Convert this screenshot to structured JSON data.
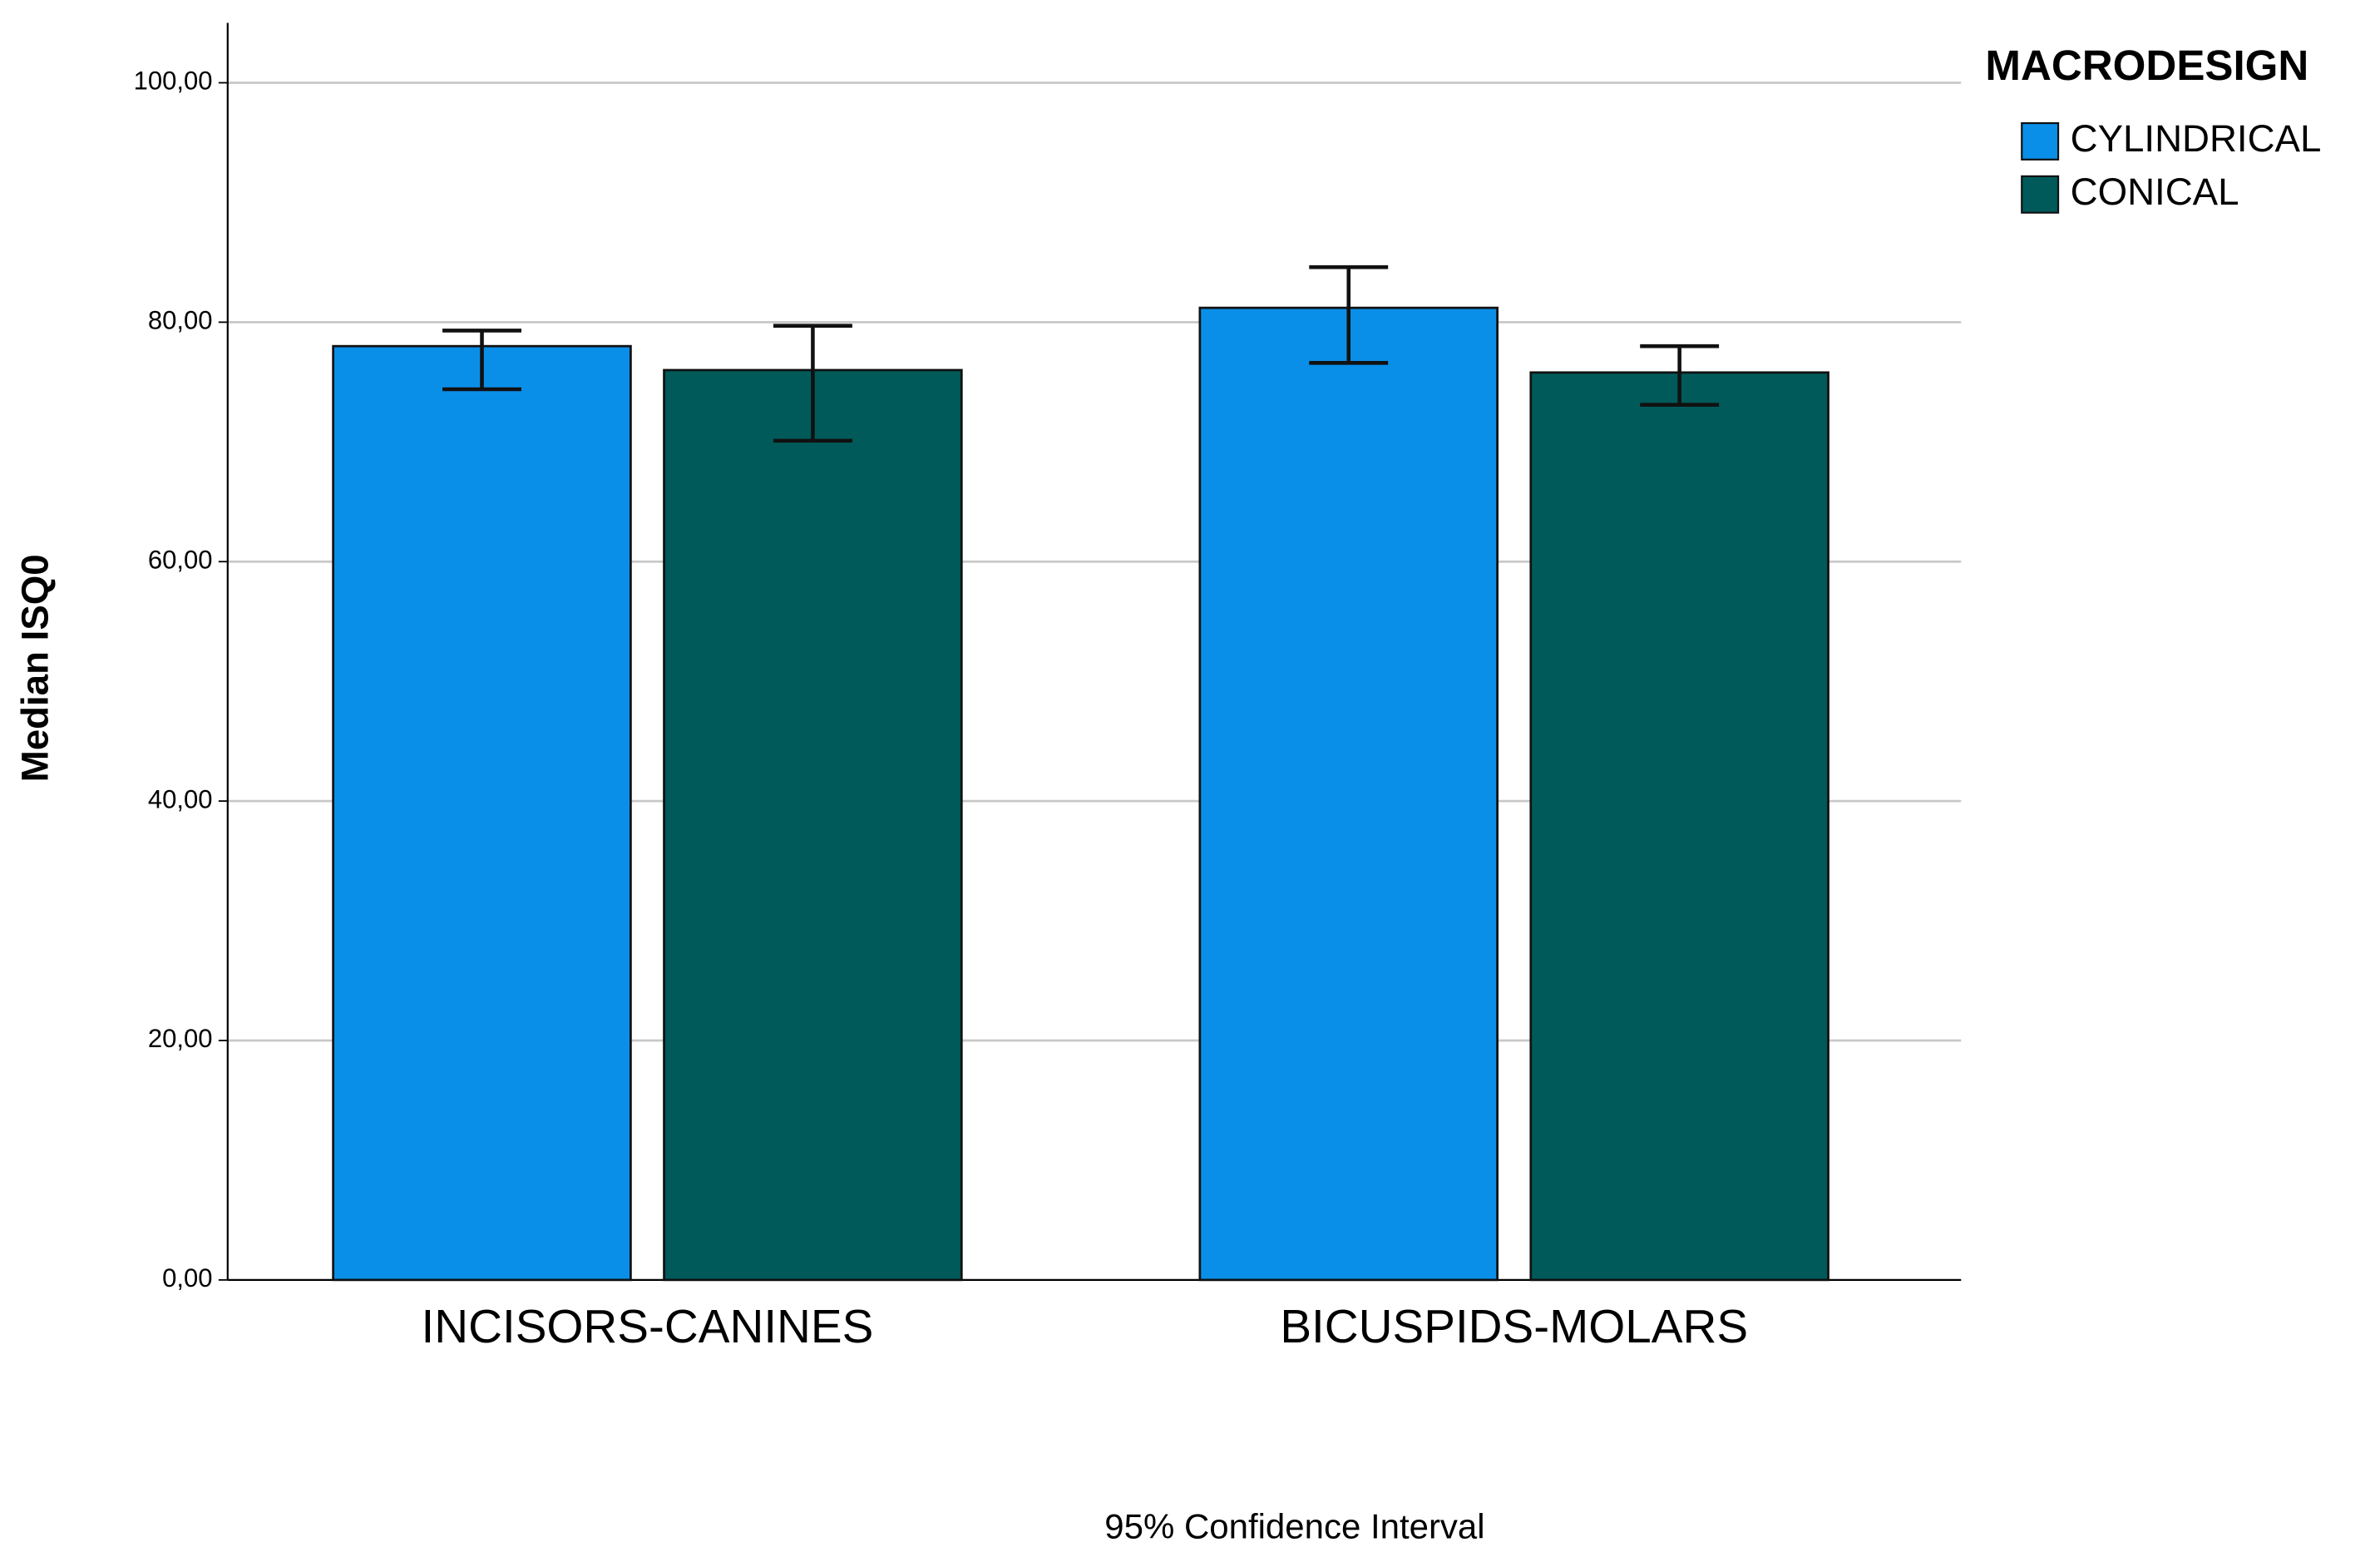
{
  "chart_data": {
    "type": "bar",
    "title_y": "Median ISQ0",
    "x_label": "95% Confidence Interval",
    "legend_title": "MACRODESIGN",
    "legend_position": "right",
    "categories": [
      "INCISORS-CANINES",
      "BICUSPIDS-MOLARS"
    ],
    "series": [
      {
        "name": "CYLINDRICAL",
        "color": "#0a8fe8",
        "values": [
          78.0,
          81.2
        ],
        "ci_low": [
          74.4,
          76.6
        ],
        "ci_high": [
          79.3,
          84.6
        ]
      },
      {
        "name": "CONICAL",
        "color": "#005a5a",
        "values": [
          76.0,
          75.8
        ],
        "ci_low": [
          70.1,
          73.1
        ],
        "ci_high": [
          79.7,
          78.0
        ]
      }
    ],
    "ylim": [
      0,
      105
    ],
    "yticks": [
      {
        "value": 0,
        "label": "0,00"
      },
      {
        "value": 20,
        "label": "20,00"
      },
      {
        "value": 40,
        "label": "40,00"
      },
      {
        "value": 60,
        "label": "60,00"
      },
      {
        "value": 80,
        "label": "80,00"
      },
      {
        "value": 100,
        "label": "100,00"
      }
    ],
    "grid": true
  }
}
